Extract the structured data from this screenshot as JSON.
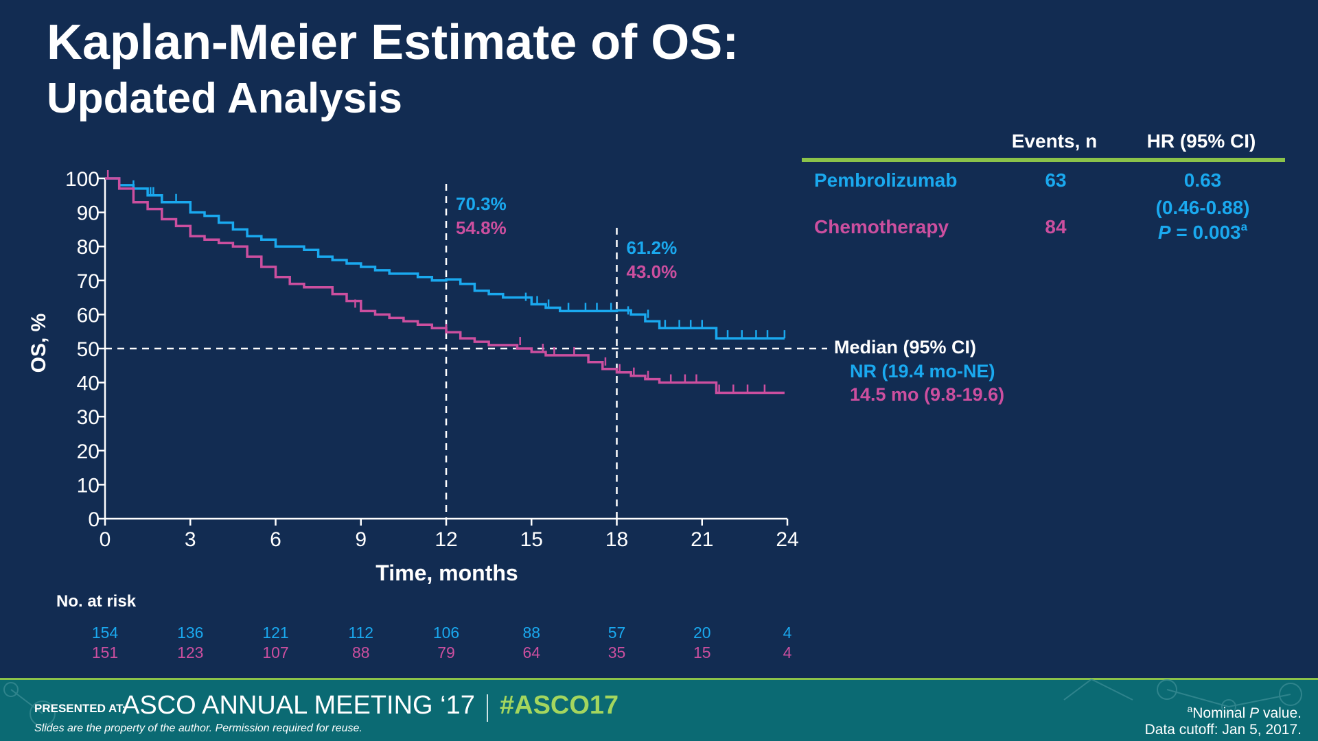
{
  "slide": {
    "title_line1": "Kaplan-Meier Estimate of OS:",
    "title_line2": "Updated Analysis",
    "colors": {
      "background": "#122c52",
      "pembrolizumab": "#1aa9ef",
      "chemotherapy": "#cc4f9f",
      "accent_green": "#8bc34a",
      "footer": "#0b6a73"
    }
  },
  "summary_table": {
    "header_events": "Events, n",
    "header_hr": "HR (95% CI)",
    "rows": [
      {
        "arm": "Pembrolizumab",
        "events": "63"
      },
      {
        "arm": "Chemotherapy",
        "events": "84"
      }
    ],
    "hr": "0.63",
    "ci": "(0.46-0.88)",
    "p_italic": "P",
    "p_value": " = 0.003",
    "p_footnote": "a"
  },
  "median": {
    "label": "Median (95% CI)",
    "pembrolizumab": "NR (19.4 mo-NE)",
    "chemotherapy": "14.5 mo (9.8-19.6)"
  },
  "landmarks": [
    {
      "month": 12,
      "pembrolizumab": "70.3%",
      "chemotherapy": "54.8%"
    },
    {
      "month": 18,
      "pembrolizumab": "61.2%",
      "chemotherapy": "43.0%"
    }
  ],
  "chart_data": {
    "type": "line",
    "subtype": "kaplan-meier step",
    "xlabel": "Time, months",
    "ylabel": "OS, %",
    "xlim": [
      0,
      24
    ],
    "ylim": [
      0,
      100
    ],
    "x_ticks": [
      "0",
      "3",
      "6",
      "9",
      "12",
      "15",
      "18",
      "21",
      "24"
    ],
    "y_ticks": [
      "0",
      "10",
      "20",
      "30",
      "40",
      "50",
      "60",
      "70",
      "80",
      "90",
      "100"
    ],
    "median_reference_y": 50,
    "landmark_x": [
      12,
      18
    ],
    "series": [
      {
        "name": "Pembrolizumab",
        "color": "#1aa9ef",
        "x": [
          0,
          0.5,
          1,
          1.5,
          2,
          2.5,
          3,
          3.5,
          4,
          4.5,
          5,
          5.5,
          6,
          6.5,
          7,
          7.5,
          8,
          8.5,
          9,
          9.5,
          10,
          10.5,
          11,
          11.5,
          12,
          12.5,
          13,
          13.5,
          14,
          14.5,
          15,
          15.5,
          16,
          16.5,
          17,
          17.5,
          18,
          18.5,
          19,
          19.5,
          20,
          20.5,
          21,
          21.5,
          22,
          22.5,
          23,
          23.5,
          23.9
        ],
        "y": [
          100,
          98,
          97,
          95,
          93,
          93,
          90,
          89,
          87,
          85,
          83,
          82,
          80,
          80,
          79,
          77,
          76,
          75,
          74,
          73,
          72,
          72,
          71,
          70,
          70.3,
          69,
          67,
          66,
          65,
          65,
          63,
          62,
          61,
          61,
          61,
          61,
          61.2,
          60,
          58,
          56,
          56,
          56,
          56,
          53,
          53,
          53,
          53,
          53,
          53
        ],
        "censor_x": [
          1,
          1.6,
          1.7,
          2.5,
          14.8,
          15.2,
          15.6,
          16.3,
          16.9,
          17.3,
          17.8,
          18.4,
          19.1,
          19.7,
          20.2,
          20.6,
          21.0,
          21.9,
          22.4,
          22.9,
          23.3,
          23.9
        ],
        "censor_y": [
          97,
          95,
          95,
          93,
          64,
          63,
          62,
          61,
          61,
          61,
          61,
          60,
          59,
          56,
          56,
          56,
          56,
          53,
          53,
          53,
          53,
          53
        ]
      },
      {
        "name": "Chemotherapy",
        "color": "#cc4f9f",
        "x": [
          0,
          0.5,
          1,
          1.5,
          2,
          2.5,
          3,
          3.5,
          4,
          4.5,
          5,
          5.5,
          6,
          6.5,
          7,
          7.5,
          8,
          8.5,
          9,
          9.5,
          10,
          10.5,
          11,
          11.5,
          12,
          12.5,
          13,
          13.5,
          14,
          14.5,
          15,
          15.5,
          16,
          16.5,
          17,
          17.5,
          18,
          18.5,
          19,
          19.5,
          20,
          20.5,
          21,
          21.5,
          22,
          22.5,
          23,
          23.5,
          23.9
        ],
        "y": [
          100,
          97,
          93,
          91,
          88,
          86,
          83,
          82,
          81,
          80,
          77,
          74,
          71,
          69,
          68,
          68,
          66,
          64,
          61,
          60,
          59,
          58,
          57,
          56,
          54.8,
          53,
          52,
          51,
          51,
          50,
          49,
          48,
          48,
          48,
          46,
          44,
          43.0,
          42,
          41,
          40,
          40,
          40,
          40,
          37,
          37,
          37,
          37,
          37,
          37
        ],
        "censor_x": [
          0.1,
          3.0,
          8.8,
          12.0,
          14.6,
          15.4,
          15.8,
          16.5,
          17.6,
          18.1,
          18.6,
          19.1,
          19.9,
          20.4,
          20.8,
          21.6,
          22.1,
          22.6,
          23.2
        ],
        "censor_y": [
          100,
          83,
          62,
          54.8,
          51,
          49,
          48,
          48,
          45,
          43,
          42,
          41,
          40,
          40,
          40,
          37,
          37,
          37,
          37
        ]
      }
    ]
  },
  "risk_table": {
    "title": "No. at risk",
    "months": [
      0,
      3,
      6,
      9,
      12,
      15,
      18,
      21,
      24
    ],
    "pembrolizumab": [
      "154",
      "136",
      "121",
      "112",
      "106",
      "88",
      "57",
      "20",
      "4"
    ],
    "chemotherapy": [
      "151",
      "123",
      "107",
      "88",
      "79",
      "64",
      "35",
      "15",
      "4"
    ]
  },
  "footer": {
    "presented_at": "PRESENTED AT:",
    "meeting": "ASCO ANNUAL MEETING ‘17",
    "hashtag": "#ASCO17",
    "disclaimer": "Slides are the property of the author. Permission required for reuse.",
    "footnote_mark": "a",
    "footnote_text": "Nominal ",
    "footnote_italic": "P",
    "footnote_end": " value.",
    "data_cutoff": "Data cutoff: Jan 5, 2017."
  }
}
